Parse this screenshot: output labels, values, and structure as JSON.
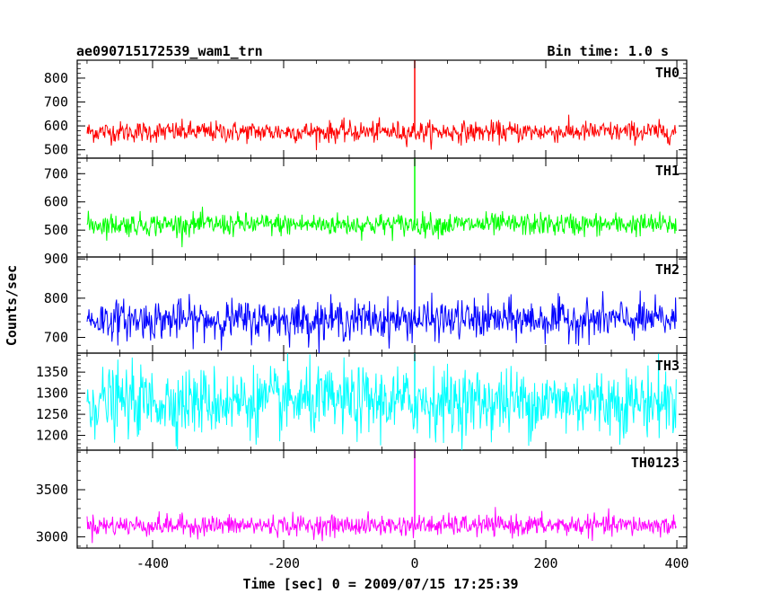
{
  "chart_data": {
    "type": "line",
    "title": "ae090715172539_wam1_trn",
    "subtitle": "Bin time: 1.0 s",
    "xlabel": "Time [sec] 0 = 2009/07/15 17:25:39",
    "ylabel": "Counts/sec",
    "xlim": [
      -515,
      415
    ],
    "x_ticks": [
      -400,
      -200,
      0,
      200,
      400
    ],
    "x_range_data": [
      -500,
      399
    ],
    "spike_x": 0,
    "grid": false,
    "panels": [
      {
        "name": "TH0",
        "color": "#ff0000",
        "ylim": [
          465,
          875
        ],
        "y_ticks": [
          500,
          600,
          700,
          800
        ],
        "mean": 575,
        "noise_sd": 22,
        "spike_y": 875
      },
      {
        "name": "TH1",
        "color": "#00ff00",
        "ylim": [
          405,
          755
        ],
        "y_ticks": [
          500,
          600,
          700
        ],
        "mean": 520,
        "noise_sd": 20,
        "spike_y": 755
      },
      {
        "name": "TH2",
        "color": "#0000ff",
        "ylim": [
          660,
          905
        ],
        "y_ticks": [
          700,
          800,
          900
        ],
        "mean": 745,
        "noise_sd": 25,
        "spike_y": 905
      },
      {
        "name": "TH3",
        "color": "#00ffff",
        "ylim": [
          1165,
          1395
        ],
        "y_ticks": [
          1200,
          1250,
          1300,
          1350
        ],
        "mean": 1280,
        "noise_sd": 40,
        "spike_y": 1395
      },
      {
        "name": "TH0123",
        "color": "#ff00ff",
        "ylim": [
          2880,
          3920
        ],
        "y_ticks": [
          3000,
          3500
        ],
        "mean": 3120,
        "noise_sd": 55,
        "spike_y": 3920
      }
    ]
  }
}
